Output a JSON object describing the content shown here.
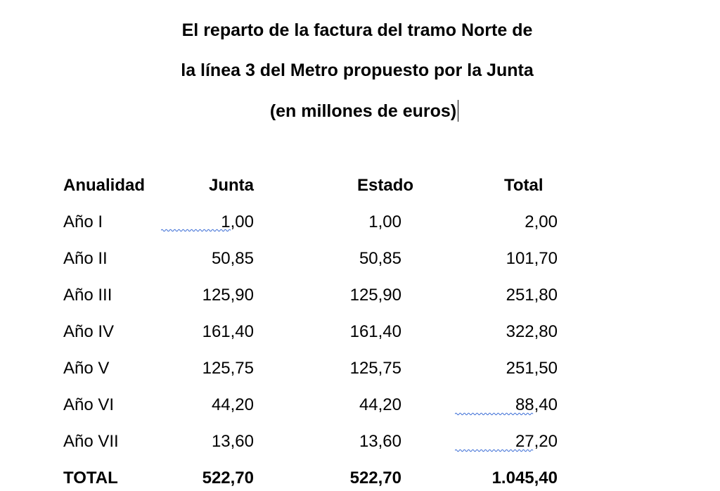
{
  "title": {
    "line1": "El reparto de la factura del tramo Norte de",
    "line2": "la línea 3 del Metro propuesto por la Junta",
    "line3": "(en millones de euros)"
  },
  "table": {
    "headers": [
      "Anualidad",
      "Junta",
      "Estado",
      "Total"
    ],
    "rows": [
      [
        "Año I",
        "1,00",
        "1,00",
        "2,00"
      ],
      [
        "Año II",
        "50,85",
        "50,85",
        "101,70"
      ],
      [
        "Año III",
        "125,90",
        "125,90",
        "251,80"
      ],
      [
        "Año IV",
        "161,40",
        "161,40",
        "322,80"
      ],
      [
        "Año V",
        "125,75",
        "125,75",
        "251,50"
      ],
      [
        "Año VI",
        "44,20",
        "44,20",
        "88,40"
      ],
      [
        "Año VII",
        "13,60",
        "13,60",
        "27,20"
      ]
    ],
    "total": [
      "TOTAL",
      "522,70",
      "522,70",
      "1.045,40"
    ]
  },
  "colors": {
    "text": "#000000",
    "spellcheck": "#3e6fd6"
  }
}
